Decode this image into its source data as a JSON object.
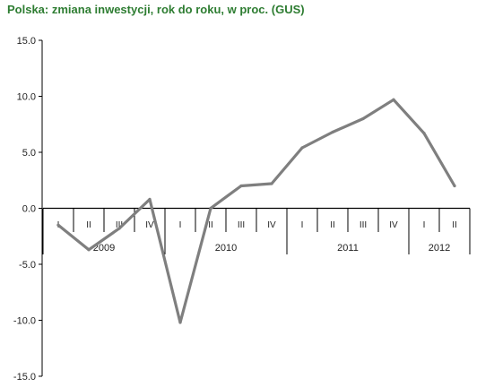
{
  "chart_data": {
    "type": "line",
    "title": "Polska: zmiana inwestycji, rok do roku, w proc. (GUS)",
    "quarters": [
      "I",
      "II",
      "III",
      "IV",
      "I",
      "II",
      "III",
      "IV",
      "I",
      "II",
      "III",
      "IV",
      "I",
      "II"
    ],
    "years": [
      {
        "label": "2009",
        "start": 0,
        "end": 3
      },
      {
        "label": "2010",
        "start": 4,
        "end": 7
      },
      {
        "label": "2011",
        "start": 8,
        "end": 11
      },
      {
        "label": "2012",
        "start": 12,
        "end": 13
      }
    ],
    "values": [
      -1.5,
      -3.7,
      -1.8,
      0.8,
      -10.2,
      0.0,
      2.0,
      2.2,
      5.4,
      6.8,
      8.0,
      9.7,
      6.7,
      2.0
    ],
    "yticks": [
      "15.0",
      "10.0",
      "5.0",
      "0.0",
      "-5.0",
      "-10.0",
      "-15.0"
    ],
    "ytick_values": [
      15,
      10,
      5,
      0,
      -5,
      -10,
      -15
    ],
    "ylim": [
      -15,
      15
    ],
    "line_color": "#7f7f7f",
    "title_color": "#2e7d32"
  }
}
